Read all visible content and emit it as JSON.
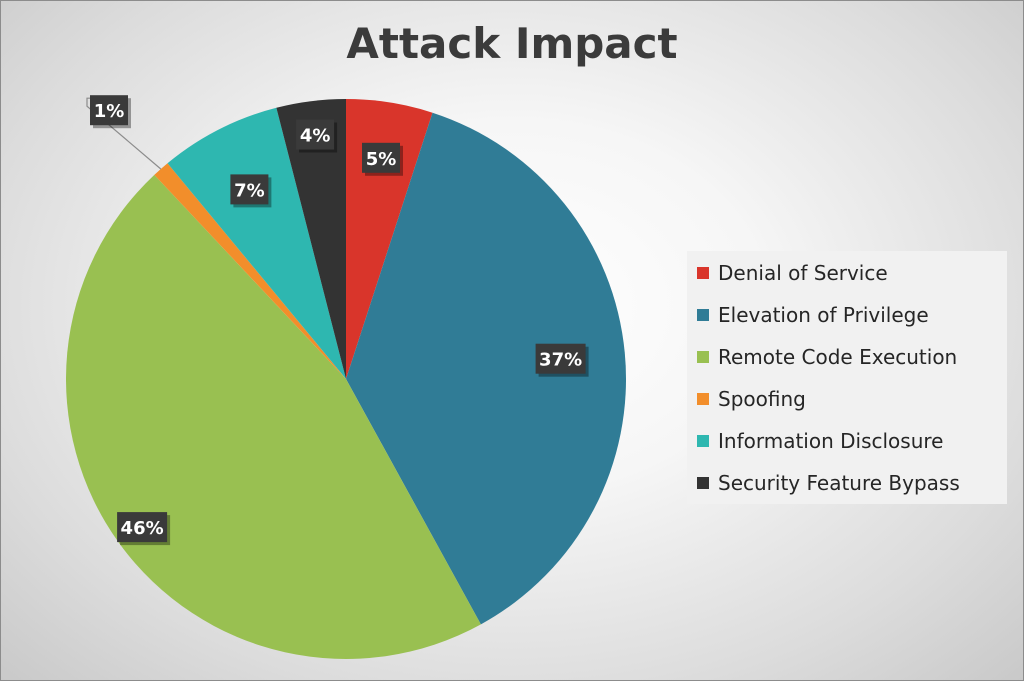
{
  "chart_data": {
    "type": "pie",
    "title": "Attack Impact",
    "legend_position": "right",
    "slices": [
      {
        "name": "Denial of Service",
        "value": 5,
        "label": "5%",
        "color": "#d9352b"
      },
      {
        "name": "Elevation of Privilege",
        "value": 37,
        "label": "37%",
        "color": "#307c96"
      },
      {
        "name": "Remote Code Execution",
        "value": 46,
        "label": "46%",
        "color": "#99c051"
      },
      {
        "name": "Spoofing",
        "value": 1,
        "label": "1%",
        "color": "#f28e2b"
      },
      {
        "name": "Information Disclosure",
        "value": 7,
        "label": "7%",
        "color": "#2eb7b0"
      },
      {
        "name": "Security Feature Bypass",
        "value": 4,
        "label": "4%",
        "color": "#333333"
      }
    ]
  }
}
